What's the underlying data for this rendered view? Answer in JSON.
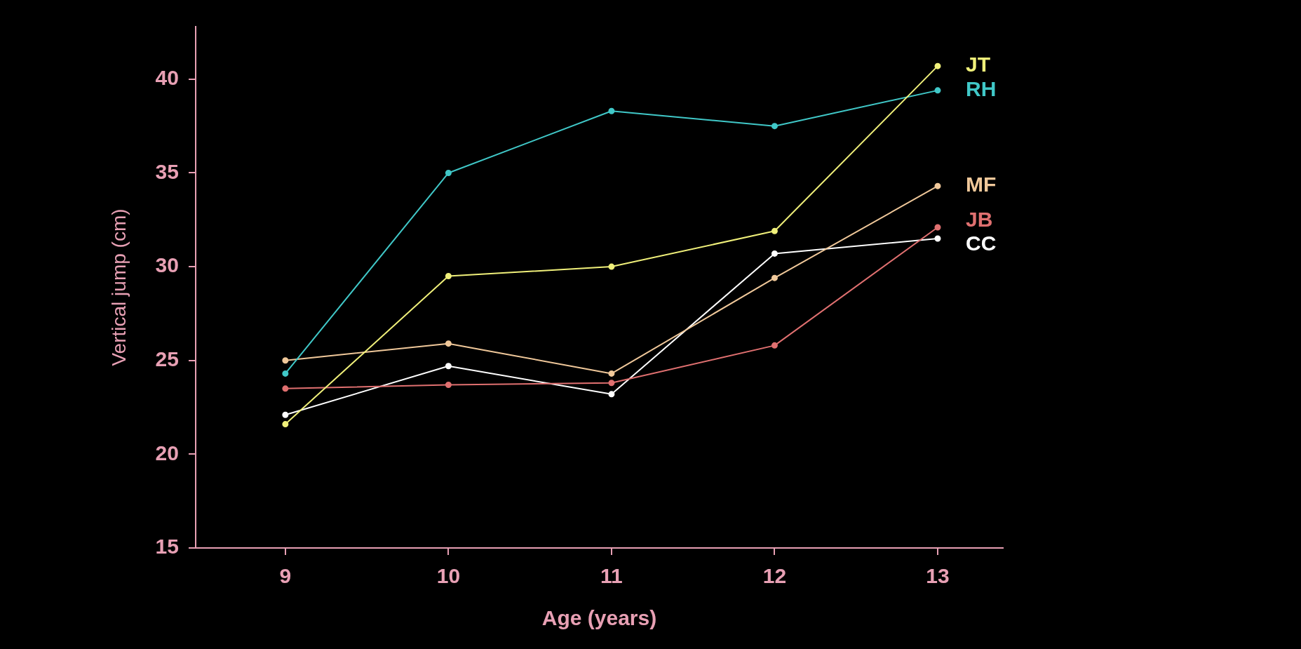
{
  "chart_data": {
    "type": "line",
    "xlabel": "Age (years)",
    "ylabel": "Vertical jump (cm)",
    "x": [
      9,
      10,
      11,
      12,
      13
    ],
    "xlim": [
      8.45,
      13.4
    ],
    "xticks": [
      9,
      10,
      11,
      12,
      13
    ],
    "ylim": [
      15,
      42.8
    ],
    "yticks": [
      15,
      20,
      25,
      30,
      35,
      40
    ],
    "grid": false,
    "legend": false,
    "marker": "circle",
    "line_style": "solid",
    "series": [
      {
        "name": "JT",
        "color": "#f0f07a",
        "values": [
          21.6,
          29.5,
          30.0,
          31.9,
          40.7
        ]
      },
      {
        "name": "RH",
        "color": "#40c8c8",
        "values": [
          24.3,
          35.0,
          38.3,
          37.5,
          39.4
        ]
      },
      {
        "name": "MF",
        "color": "#f0c89a",
        "values": [
          25.0,
          25.9,
          24.3,
          29.4,
          34.3
        ]
      },
      {
        "name": "JB",
        "color": "#e07070",
        "values": [
          23.5,
          23.7,
          23.8,
          25.8,
          32.1
        ]
      },
      {
        "name": "CC",
        "color": "#ffffff",
        "values": [
          22.1,
          24.7,
          23.2,
          30.7,
          31.5
        ]
      }
    ]
  }
}
